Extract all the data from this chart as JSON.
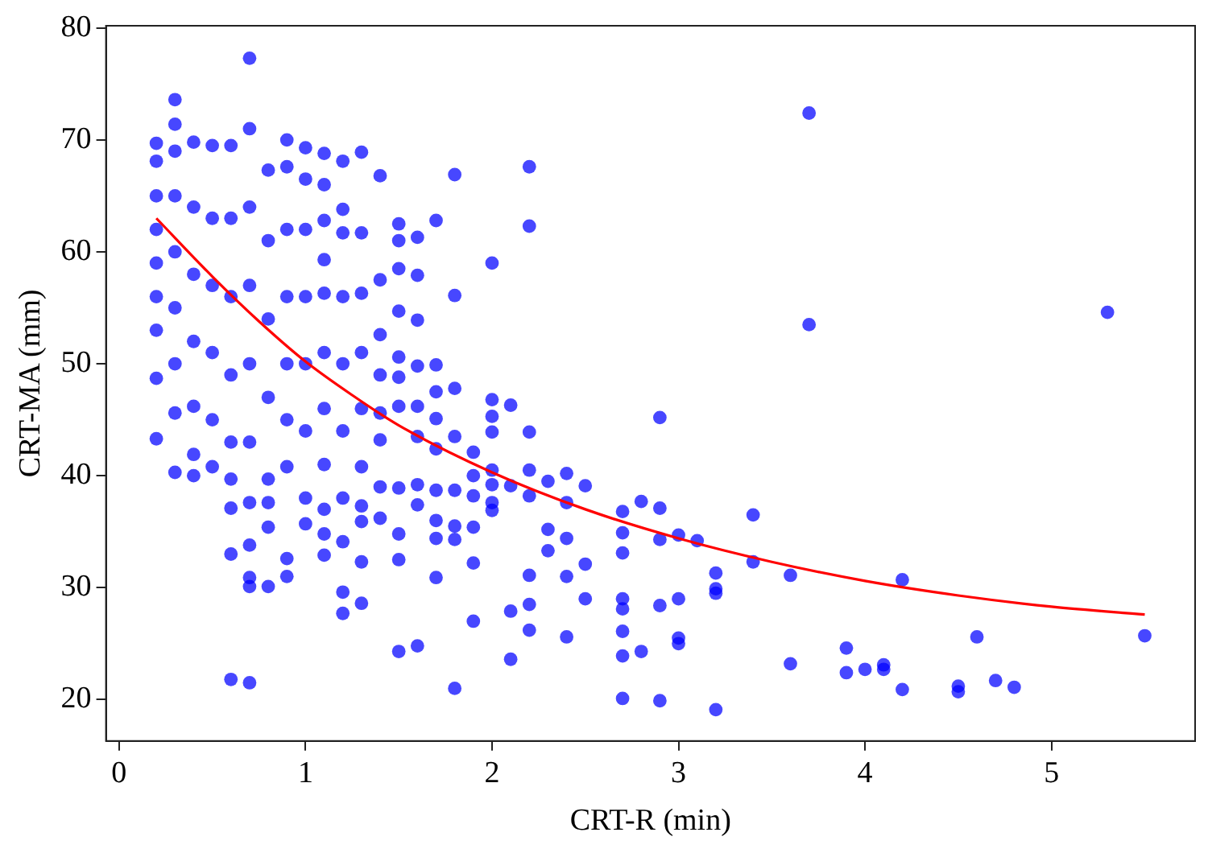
{
  "chart_data": {
    "type": "scatter",
    "xlabel": "CRT-R (min)",
    "ylabel": "CRT-MA (mm)",
    "xlim": [
      -0.07,
      5.77
    ],
    "ylim": [
      16.3,
      80.2
    ],
    "xticks": [
      0,
      1,
      2,
      3,
      4,
      5
    ],
    "yticks": [
      20,
      30,
      40,
      50,
      60,
      70,
      80
    ],
    "grid": false,
    "legend": false,
    "series": [
      {
        "type": "scatter",
        "marker": "circle",
        "color": "#0000ff",
        "x": [
          0.2,
          0.2,
          0.2,
          0.2,
          0.2,
          0.2,
          0.2,
          0.2,
          0.2,
          0.3,
          0.3,
          0.3,
          0.3,
          0.3,
          0.3,
          0.3,
          0.3,
          0.3,
          0.4,
          0.4,
          0.4,
          0.4,
          0.4,
          0.4,
          0.4,
          0.5,
          0.5,
          0.5,
          0.5,
          0.5,
          0.5,
          0.6,
          0.6,
          0.6,
          0.6,
          0.6,
          0.6,
          0.6,
          0.6,
          0.6,
          0.7,
          0.7,
          0.7,
          0.7,
          0.7,
          0.7,
          0.7,
          0.7,
          0.7,
          0.7,
          0.7,
          0.8,
          0.8,
          0.8,
          0.8,
          0.8,
          0.8,
          0.8,
          0.8,
          0.9,
          0.9,
          0.9,
          0.9,
          0.9,
          0.9,
          0.9,
          0.9,
          0.9,
          1.0,
          1.0,
          1.0,
          1.0,
          1.0,
          1.0,
          1.0,
          1.0,
          1.1,
          1.1,
          1.1,
          1.1,
          1.1,
          1.1,
          1.1,
          1.1,
          1.1,
          1.1,
          1.1,
          1.2,
          1.2,
          1.2,
          1.2,
          1.2,
          1.2,
          1.2,
          1.2,
          1.2,
          1.2,
          1.3,
          1.3,
          1.3,
          1.3,
          1.3,
          1.3,
          1.3,
          1.3,
          1.3,
          1.3,
          1.4,
          1.4,
          1.4,
          1.4,
          1.4,
          1.4,
          1.4,
          1.4,
          1.5,
          1.5,
          1.5,
          1.5,
          1.5,
          1.5,
          1.5,
          1.5,
          1.5,
          1.5,
          1.5,
          1.6,
          1.6,
          1.6,
          1.6,
          1.6,
          1.6,
          1.6,
          1.6,
          1.6,
          1.7,
          1.7,
          1.7,
          1.7,
          1.7,
          1.7,
          1.7,
          1.7,
          1.7,
          1.8,
          1.8,
          1.8,
          1.8,
          1.8,
          1.8,
          1.8,
          1.8,
          1.9,
          1.9,
          1.9,
          1.9,
          1.9,
          1.9,
          2.0,
          2.0,
          2.0,
          2.0,
          2.0,
          2.0,
          2.0,
          2.0,
          2.1,
          2.1,
          2.1,
          2.1,
          2.2,
          2.2,
          2.2,
          2.2,
          2.2,
          2.2,
          2.2,
          2.2,
          2.3,
          2.3,
          2.3,
          2.4,
          2.4,
          2.4,
          2.4,
          2.4,
          2.5,
          2.5,
          2.5,
          2.7,
          2.7,
          2.7,
          2.7,
          2.7,
          2.7,
          2.7,
          2.7,
          2.8,
          2.8,
          2.9,
          2.9,
          2.9,
          2.9,
          2.9,
          3.0,
          3.0,
          3.0,
          3.0,
          3.1,
          3.2,
          3.2,
          3.2,
          3.2,
          3.4,
          3.4,
          3.6,
          3.6,
          3.7,
          3.7,
          3.9,
          3.9,
          4.0,
          4.1,
          4.1,
          4.2,
          4.2,
          4.5,
          4.5,
          4.6,
          4.7,
          4.8,
          5.3,
          5.5
        ],
        "values": [
          69.7,
          68.1,
          65,
          62,
          59,
          56,
          53,
          48.7,
          43.3,
          73.6,
          71.4,
          69,
          65,
          60,
          55,
          50,
          45.6,
          40.3,
          69.8,
          64,
          58,
          52,
          46.2,
          41.9,
          40,
          69.5,
          63,
          57,
          51,
          45,
          40.8,
          69.5,
          63,
          56,
          49,
          43,
          39.7,
          37.1,
          33,
          21.8,
          77.3,
          71,
          64,
          57,
          50,
          43,
          37.6,
          33.8,
          30.9,
          30.1,
          21.5,
          67.3,
          61,
          54,
          47,
          39.7,
          37.6,
          35.4,
          30.1,
          70,
          67.6,
          62,
          56,
          50,
          45,
          40.8,
          32.6,
          31,
          69.3,
          66.5,
          62,
          56,
          50,
          44,
          38,
          35.7,
          68.8,
          66,
          62.8,
          59.3,
          56.3,
          51,
          46,
          41,
          37,
          34.8,
          32.9,
          68.1,
          63.8,
          61.7,
          56,
          50,
          44,
          38,
          34.1,
          29.6,
          27.7,
          68.9,
          61.7,
          56.3,
          51,
          46,
          40.8,
          37.3,
          35.9,
          32.3,
          28.6,
          66.8,
          57.5,
          52.6,
          49,
          45.6,
          43.2,
          39,
          36.2,
          62.5,
          61,
          58.5,
          54.7,
          50.6,
          48.8,
          46.2,
          38.9,
          34.8,
          32.5,
          24.3,
          61.3,
          57.9,
          53.9,
          49.8,
          46.2,
          43.5,
          39.2,
          37.4,
          24.8,
          62.8,
          49.9,
          47.5,
          45.1,
          42.4,
          38.7,
          36,
          34.4,
          30.9,
          66.9,
          56.1,
          47.8,
          43.5,
          38.7,
          35.5,
          34.3,
          21,
          42.1,
          40,
          38.2,
          35.4,
          32.2,
          27,
          59,
          46.8,
          45.3,
          43.9,
          40.5,
          39.2,
          37.6,
          36.9,
          46.3,
          39.1,
          27.9,
          23.6,
          67.6,
          62.3,
          43.9,
          40.5,
          38.2,
          31.1,
          28.5,
          26.2,
          39.5,
          35.2,
          33.3,
          40.2,
          37.6,
          34.4,
          31,
          25.6,
          39.1,
          32.1,
          29,
          36.8,
          34.9,
          33.1,
          29,
          28.1,
          26.1,
          23.9,
          20.1,
          37.7,
          24.3,
          45.2,
          37.1,
          34.3,
          28.4,
          19.9,
          34.7,
          29,
          25.5,
          25,
          34.2,
          31.3,
          29.9,
          29.5,
          19.1,
          36.5,
          32.3,
          31.1,
          23.2,
          72.4,
          53.5,
          24.6,
          22.4,
          22.7,
          23.1,
          22.7,
          30.7,
          20.9,
          21.2,
          20.7,
          25.6,
          21.7,
          21.1,
          54.6,
          25.7
        ]
      },
      {
        "type": "line",
        "marker": "none",
        "color": "#ff0000",
        "x": [
          0.2,
          0.5,
          0.75,
          1.0,
          1.25,
          1.5,
          2.0,
          2.5,
          3.0,
          3.5,
          4.0,
          4.5,
          5.0,
          5.5
        ],
        "values": [
          63.0,
          57.8,
          53.8,
          50.2,
          47.2,
          44.5,
          40.3,
          37.0,
          34.4,
          32.3,
          30.6,
          29.3,
          28.3,
          27.6
        ]
      }
    ]
  }
}
